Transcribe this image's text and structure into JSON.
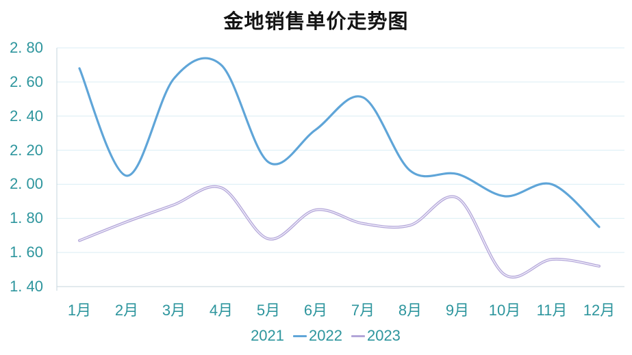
{
  "title": "金地销售单价走势图",
  "chart_data": {
    "type": "line",
    "smooth": true,
    "title": "金地销售单价走势图",
    "xlabel": "",
    "ylabel": "",
    "categories": [
      "1月",
      "2月",
      "3月",
      "4月",
      "5月",
      "6月",
      "7月",
      "8月",
      "9月",
      "10月",
      "11月",
      "12月"
    ],
    "series": [
      {
        "name": "2021",
        "values": [],
        "color": null
      },
      {
        "name": "2022",
        "values": [
          2.68,
          2.05,
          2.62,
          2.7,
          2.13,
          2.32,
          2.51,
          2.08,
          2.06,
          1.93,
          2.0,
          1.75
        ],
        "color": "#5fa5d8"
      },
      {
        "name": "2023",
        "values": [
          1.67,
          1.78,
          1.88,
          1.98,
          1.68,
          1.85,
          1.77,
          1.76,
          1.92,
          1.47,
          1.56,
          1.52
        ],
        "color": "#b2a5d8",
        "highlight": "#f0edfa"
      }
    ],
    "ylim": [
      1.4,
      2.8
    ],
    "ytick_step": 0.2,
    "yticks": [
      2.8,
      2.6,
      2.4,
      2.2,
      2.0,
      1.8,
      1.6,
      1.4
    ],
    "ytick_labels": [
      "2. 80",
      "2. 60",
      "2. 40",
      "2. 20",
      "2. 00",
      "1. 80",
      "1. 60",
      "1. 40"
    ],
    "grid": true,
    "legend_position": "bottom",
    "legend": [
      {
        "label": "2021",
        "swatch": null
      },
      {
        "label": "2022",
        "swatch": "#5fa5d8"
      },
      {
        "label": "2023",
        "swatch": "#b2a5d8"
      }
    ]
  },
  "colors": {
    "text": "#2d959d",
    "grid": "#d9eef4",
    "axis": "#c6d6de",
    "title": "#141414",
    "background": "#ffffff"
  }
}
